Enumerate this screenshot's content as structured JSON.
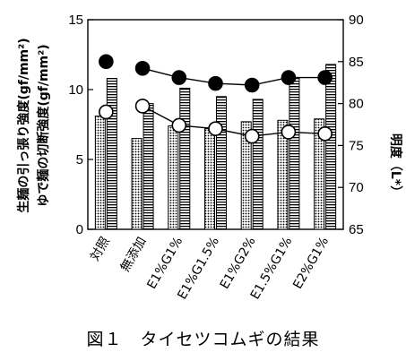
{
  "caption": "図１　タイセツコムギの結果",
  "chart_data": {
    "type": "bar",
    "categories": [
      "対照",
      "無添加",
      "E1%G1%",
      "E1%G1.5%",
      "E1%G2%",
      "E1.5%G1%",
      "E2%G1%"
    ],
    "y_left": {
      "label_line1": "生麺の引っ張り強度(gf/mm²)",
      "label_line2": "ゆで麺の切断強度(gf/mm²)",
      "ylim": [
        0,
        15
      ],
      "ticks": [
        0,
        5,
        10,
        15
      ]
    },
    "y_right": {
      "label": "明度（L*）",
      "ylim": [
        65,
        90
      ],
      "ticks": [
        65,
        70,
        75,
        80,
        85,
        90
      ]
    },
    "grid": false,
    "legend": "none",
    "series": [
      {
        "axis": "left",
        "kind": "bar-dotted",
        "values": [
          8.1,
          6.5,
          7.4,
          7.2,
          7.7,
          7.8,
          7.9
        ]
      },
      {
        "axis": "left",
        "kind": "bar-hatched",
        "values": [
          10.8,
          9.0,
          10.1,
          9.5,
          9.3,
          10.8,
          11.8
        ]
      },
      {
        "axis": "right",
        "kind": "line-filled-circle",
        "values": [
          85.0,
          84.2,
          83.1,
          82.4,
          82.2,
          83.1,
          83.1
        ]
      },
      {
        "axis": "right",
        "kind": "line-open-circle",
        "values": [
          79.0,
          79.7,
          77.4,
          77.0,
          76.1,
          76.6,
          76.4
        ]
      }
    ],
    "colors": {
      "ink": "#000000",
      "paper": "#ffffff"
    }
  }
}
